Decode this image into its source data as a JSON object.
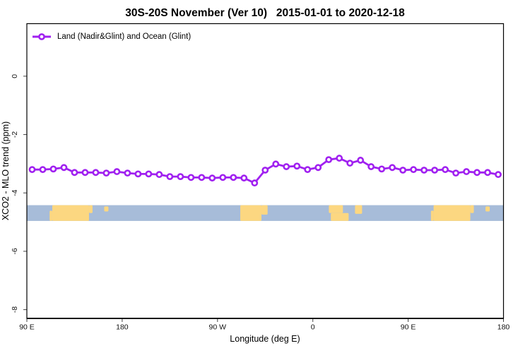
{
  "title": "30S-20S November (Ver 10)   2015-01-01 to 2020-12-18",
  "legend": {
    "label": "Land (Nadir&Glint) and Ocean (Glint)"
  },
  "axes": {
    "x": {
      "label": "Longitude (deg E)",
      "ticks": [
        {
          "v": 90,
          "label": "90 E"
        },
        {
          "v": 180,
          "label": "180"
        },
        {
          "v": 270,
          "label": "90 W"
        },
        {
          "v": 360,
          "label": "0"
        },
        {
          "v": 450,
          "label": "90 E"
        },
        {
          "v": 540,
          "label": "180"
        }
      ]
    },
    "y": {
      "label": "XCO2 - MLO trend (ppm)",
      "ticks": [
        {
          "v": 0,
          "label": "0"
        },
        {
          "v": -2,
          "label": "-2"
        },
        {
          "v": -4,
          "label": "-4"
        },
        {
          "v": -6,
          "label": "-6"
        },
        {
          "v": -8,
          "label": "-8"
        }
      ]
    }
  },
  "chart_data": {
    "type": "line",
    "title": "30S-20S November (Ver 10)   2015-01-01 to 2020-12-18",
    "xlabel": "Longitude (deg E)",
    "ylabel": "XCO2 - MLO trend (ppm)",
    "xlim": [
      90,
      540
    ],
    "ylim": [
      -8.3,
      1.8
    ],
    "grid": false,
    "legend_position": "top-left-inside",
    "series": [
      {
        "name": "Land (Nadir&Glint) and Ocean (Glint)",
        "color": "#A020F0",
        "marker": "open-circle",
        "x": [
          95,
          105,
          115,
          125,
          135,
          145,
          155,
          165,
          175,
          185,
          195,
          205,
          215,
          225,
          235,
          245,
          255,
          265,
          275,
          285,
          295,
          305,
          315,
          325,
          335,
          345,
          355,
          365,
          375,
          385,
          395,
          405,
          415,
          425,
          435,
          445,
          455,
          465,
          475,
          485,
          495,
          505,
          515,
          525,
          535
        ],
        "y": [
          -3.2,
          -3.2,
          -3.18,
          -3.13,
          -3.3,
          -3.3,
          -3.3,
          -3.32,
          -3.27,
          -3.32,
          -3.35,
          -3.35,
          -3.37,
          -3.44,
          -3.44,
          -3.47,
          -3.47,
          -3.49,
          -3.47,
          -3.47,
          -3.49,
          -3.66,
          -3.22,
          -3.01,
          -3.1,
          -3.08,
          -3.2,
          -3.13,
          -2.86,
          -2.81,
          -2.98,
          -2.88,
          -3.1,
          -3.18,
          -3.13,
          -3.22,
          -3.2,
          -3.22,
          -3.22,
          -3.2,
          -3.32,
          -3.27,
          -3.3,
          -3.3,
          -3.37
        ]
      }
    ],
    "map_strip": {
      "description": "land-ocean strip for 30S-20S latitude band",
      "ocean_color": "#A7BCD9",
      "land_color": "#FCD781",
      "y_top": -4.42,
      "y_bottom": -4.96,
      "land_segments": [
        {
          "name": "australia-west-edge",
          "x0": 111.5,
          "x1": 114.0,
          "f0": 0.35,
          "f1": 1.0
        },
        {
          "name": "australia",
          "x0": 114.0,
          "x1": 148.7,
          "f0": 0.0,
          "f1": 1.0
        },
        {
          "name": "australia-east-cape",
          "x0": 148.7,
          "x1": 152.0,
          "f0": 0.0,
          "f1": 0.5
        },
        {
          "name": "new-caledonia",
          "x0": 163.0,
          "x1": 167.0,
          "f0": 0.08,
          "f1": 0.4
        },
        {
          "name": "south-america",
          "x0": 291.5,
          "x1": 311.5,
          "f0": 0.0,
          "f1": 1.0
        },
        {
          "name": "south-america-east",
          "x0": 311.5,
          "x1": 317.3,
          "f0": 0.0,
          "f1": 0.6
        },
        {
          "name": "africa-north",
          "x0": 375.1,
          "x1": 388.4,
          "f0": 0.0,
          "f1": 0.5
        },
        {
          "name": "africa-south",
          "x0": 377.0,
          "x1": 393.8,
          "f0": 0.5,
          "f1": 1.0
        },
        {
          "name": "madagascar",
          "x0": 399.8,
          "x1": 406.5,
          "f0": 0.0,
          "f1": 0.55
        },
        {
          "name": "australia-west-edge-2",
          "x0": 471.5,
          "x1": 474.0,
          "f0": 0.35,
          "f1": 1.0
        },
        {
          "name": "australia-2",
          "x0": 474.0,
          "x1": 508.7,
          "f0": 0.0,
          "f1": 1.0
        },
        {
          "name": "australia-east-cape-2",
          "x0": 508.7,
          "x1": 512.0,
          "f0": 0.0,
          "f1": 0.5
        },
        {
          "name": "new-caledonia-2",
          "x0": 523.0,
          "x1": 527.0,
          "f0": 0.08,
          "f1": 0.4
        }
      ]
    }
  }
}
